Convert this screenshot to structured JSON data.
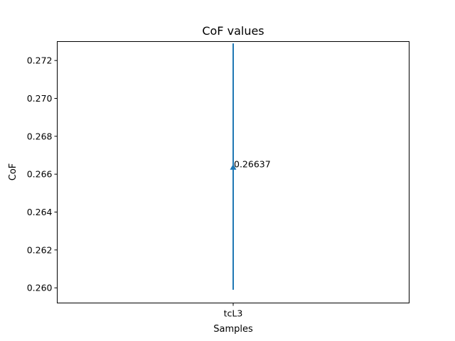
{
  "chart_data": {
    "type": "scatter",
    "title": "CoF values",
    "xlabel": "Samples",
    "ylabel": "CoF",
    "categories": [
      "tcL3"
    ],
    "ylim": [
      0.2592,
      0.273
    ],
    "yticks": [
      "0.260",
      "0.262",
      "0.264",
      "0.266",
      "0.268",
      "0.270",
      "0.272"
    ],
    "grid": false,
    "series": [
      {
        "values": [
          0.26637
        ],
        "error_low": [
          0.2599
        ],
        "error_high": [
          0.2729
        ],
        "marker": "triangle-up",
        "color": "#1f77b4",
        "data_labels": [
          "0.26637"
        ]
      }
    ]
  }
}
